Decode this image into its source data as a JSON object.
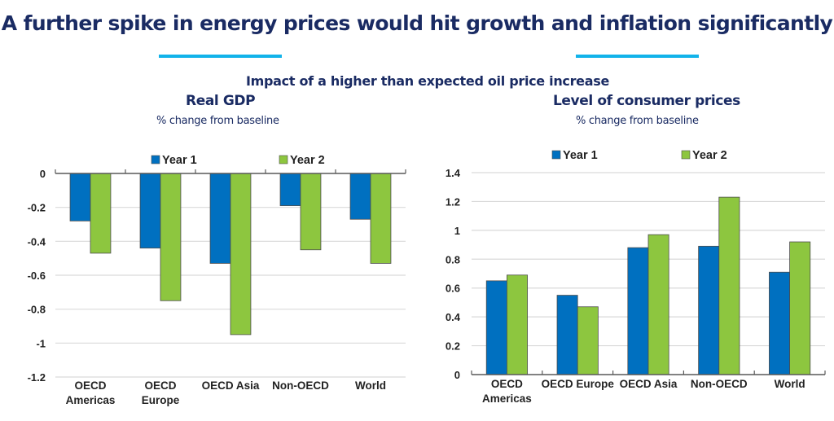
{
  "header": {
    "title": "A further spike in energy prices would hit growth and inflation significantly",
    "subtitle": "Impact of a higher than expected oil price increase"
  },
  "colors": {
    "title": "#1a2b63",
    "accent": "#12b3ea",
    "year1": "#0070c0",
    "year2": "#8dc63f",
    "grid": "#d9d9d9",
    "axis": "#595959"
  },
  "chart_data": [
    {
      "type": "bar",
      "title": "Real GDP",
      "subtitle": "% change from baseline",
      "xlabel": "",
      "ylabel": "% change from baseline",
      "categories": [
        "OECD Americas",
        "OECD Europe",
        "OECD Asia",
        "Non-OECD",
        "World"
      ],
      "category_lines": [
        [
          "OECD",
          "Americas"
        ],
        [
          "OECD",
          "Europe"
        ],
        [
          "OECD Asia"
        ],
        [
          "Non-OECD"
        ],
        [
          "World"
        ]
      ],
      "series": [
        {
          "name": "Year 1",
          "values": [
            -0.28,
            -0.44,
            -0.53,
            -0.19,
            -0.27
          ]
        },
        {
          "name": "Year 2",
          "values": [
            -0.47,
            -0.75,
            -0.95,
            -0.45,
            -0.53
          ]
        }
      ],
      "ylim": [
        -1.2,
        0
      ],
      "yticks": [
        0,
        -0.2,
        -0.4,
        -0.6,
        -0.8,
        -1,
        -1.2
      ],
      "ytick_labels": [
        "0",
        "-0.2",
        "-0.4",
        "-0.6",
        "-0.8",
        "-1",
        "-1.2"
      ],
      "grid": true,
      "legend": "top"
    },
    {
      "type": "bar",
      "title": "Level of consumer prices",
      "subtitle": "% change from baseline",
      "xlabel": "",
      "ylabel": "% change from baseline",
      "categories": [
        "OECD Americas",
        "OECD Europe",
        "OECD Asia",
        "Non-OECD",
        "World"
      ],
      "category_lines": [
        [
          "OECD",
          "Americas"
        ],
        [
          "OECD Europe"
        ],
        [
          "OECD Asia"
        ],
        [
          "Non-OECD"
        ],
        [
          "World"
        ]
      ],
      "series": [
        {
          "name": "Year 1",
          "values": [
            0.65,
            0.55,
            0.88,
            0.89,
            0.71
          ]
        },
        {
          "name": "Year 2",
          "values": [
            0.69,
            0.47,
            0.97,
            1.23,
            0.92
          ]
        }
      ],
      "ylim": [
        0,
        1.4
      ],
      "yticks": [
        0,
        0.2,
        0.4,
        0.6,
        0.8,
        1,
        1.2,
        1.4
      ],
      "ytick_labels": [
        "0",
        "0.2",
        "0.4",
        "0.6",
        "0.8",
        "1",
        "1.2",
        "1.4"
      ],
      "grid": true,
      "legend": "top"
    }
  ]
}
